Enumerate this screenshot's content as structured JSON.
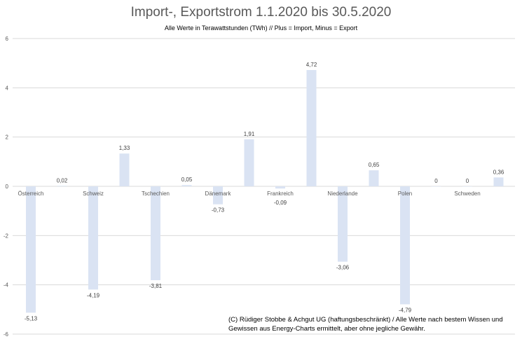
{
  "chart_data": {
    "type": "bar",
    "title": "Import-, Exportstrom 1.1.2020 bis 30.5.2020",
    "subtitle": "Alle Werte in Terawattstunden (TWh) // Plus = Import, Minus = Export",
    "categories": [
      "Österreich",
      "Schweiz",
      "Tschechien",
      "Dänemark",
      "Frankreich",
      "Niederlande",
      "Polen",
      "Schweden"
    ],
    "values": [
      [
        -5.13,
        0.02
      ],
      [
        -4.19,
        1.33
      ],
      [
        -3.81,
        0.05
      ],
      [
        -0.73,
        1.91
      ],
      [
        -0.09,
        4.72
      ],
      [
        -3.06,
        0.65
      ],
      [
        -4.79,
        0
      ],
      [
        0,
        0.36
      ]
    ],
    "data_labels": [
      [
        "-5,13",
        "0,02"
      ],
      [
        "-4,19",
        "1,33"
      ],
      [
        "-3,81",
        "0,05"
      ],
      [
        "-0,73",
        "1,91"
      ],
      [
        "-0,09",
        "4,72"
      ],
      [
        "-3,06",
        "0,65"
      ],
      [
        "-4,79",
        "0"
      ],
      [
        "0",
        "0,36"
      ]
    ],
    "yticks": [
      6,
      4,
      2,
      0,
      -2,
      -4,
      -6
    ],
    "ytick_labels": [
      "6",
      "4",
      "2",
      "0",
      "-2",
      "-4",
      "-6"
    ],
    "ylim": [
      -6,
      6
    ],
    "grid": true,
    "bar_color": "#dae3f3",
    "annotation": "(C) Rüdiger Stobbe & Achgut UG (haftungsbeschränkt) / Alle Werte nach bestem Wissen und Gewissen aus Energy-Charts ermittelt, aber ohne jegliche Gewähr."
  }
}
